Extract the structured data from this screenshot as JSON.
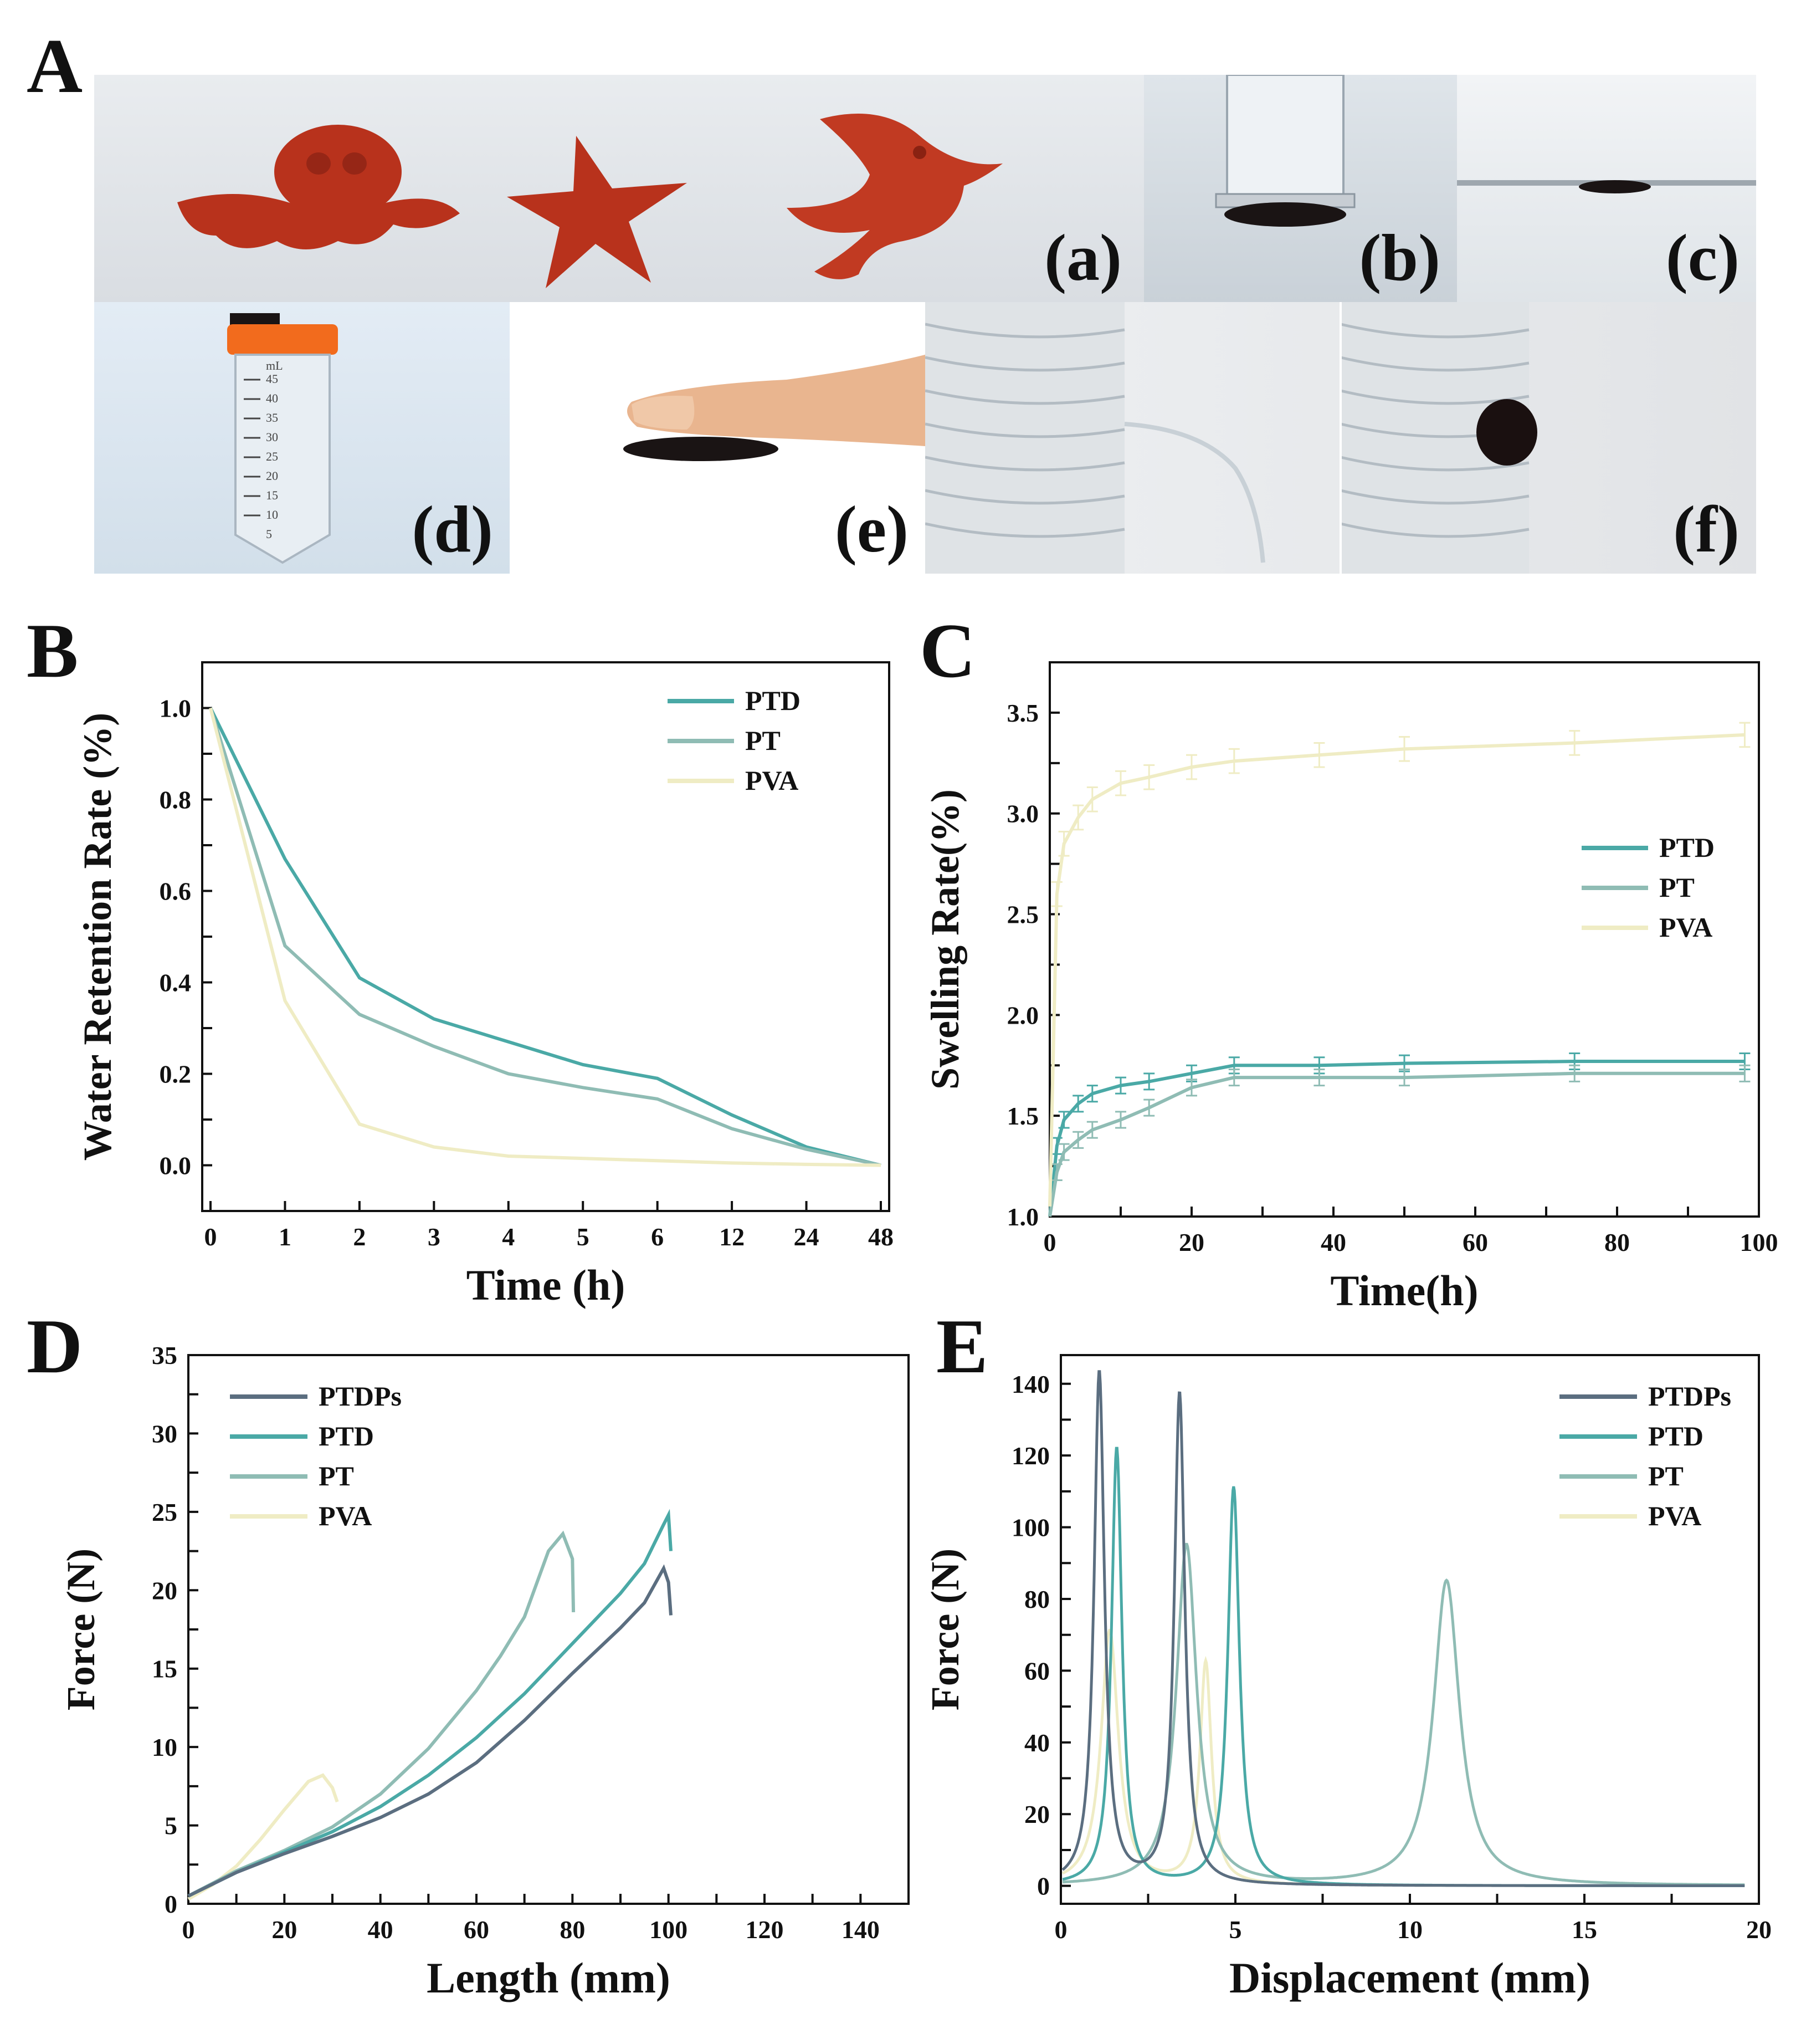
{
  "panel_letters": {
    "A": "A",
    "B": "B",
    "C": "C",
    "D": "D",
    "E": "E"
  },
  "photos": {
    "labels": [
      "(a)",
      "(b)",
      "(c)",
      "(d)",
      "(e)",
      "(f)"
    ],
    "syringe_scale": [
      "mL",
      "45",
      "40",
      "35",
      "30",
      "25",
      "20",
      "15",
      "10",
      "5"
    ]
  },
  "colors": {
    "PTDPs": "#5b6e80",
    "PTD": "#4aa9a6",
    "PT": "#8fbcb4",
    "PVA": "#efecc4",
    "hydrogel_red": "#b8321c",
    "hydrogel_black": "#1a1414"
  },
  "chart_data": [
    {
      "id": "B",
      "type": "line",
      "xlabel": "Time (h)",
      "ylabel": "Water Retention Rate (%)",
      "categories": [
        "0",
        "1",
        "2",
        "3",
        "4",
        "5",
        "6",
        "12",
        "24",
        "48"
      ],
      "ylim": [
        -0.1,
        1.1
      ],
      "yticks": [
        "0.0",
        "0.2",
        "0.4",
        "0.6",
        "0.8",
        "1.0"
      ],
      "legend_position": "top-right",
      "series": [
        {
          "name": "PTD",
          "values": [
            1.0,
            0.67,
            0.41,
            0.32,
            0.27,
            0.22,
            0.19,
            0.11,
            0.04,
            0.0
          ]
        },
        {
          "name": "PT",
          "values": [
            1.0,
            0.48,
            0.33,
            0.26,
            0.2,
            0.17,
            0.145,
            0.08,
            0.035,
            0.0
          ]
        },
        {
          "name": "PVA",
          "values": [
            1.0,
            0.36,
            0.09,
            0.04,
            0.02,
            0.015,
            0.01,
            0.005,
            0.002,
            0.0
          ]
        }
      ]
    },
    {
      "id": "C",
      "type": "line",
      "xlabel": "Time(h)",
      "ylabel": "Swelling Rate(%)",
      "xlim": [
        0,
        100
      ],
      "ylim": [
        1.0,
        3.75
      ],
      "xticks": [
        "0",
        "20",
        "40",
        "60",
        "80",
        "100"
      ],
      "yticks": [
        "1.0",
        "1.5",
        "2.0",
        "2.5",
        "3.0",
        "3.5"
      ],
      "legend_position": "middle-right",
      "error_bars": true,
      "series": [
        {
          "name": "PTD",
          "x": [
            0,
            1,
            2,
            4,
            6,
            10,
            14,
            20,
            26,
            38,
            50,
            74,
            98
          ],
          "values": [
            1.0,
            1.35,
            1.48,
            1.56,
            1.61,
            1.65,
            1.67,
            1.71,
            1.75,
            1.75,
            1.76,
            1.77,
            1.77
          ],
          "err": 0.04
        },
        {
          "name": "PT",
          "x": [
            0,
            1,
            2,
            4,
            6,
            10,
            14,
            20,
            26,
            38,
            50,
            74,
            98
          ],
          "values": [
            1.0,
            1.22,
            1.32,
            1.38,
            1.43,
            1.48,
            1.54,
            1.64,
            1.69,
            1.69,
            1.69,
            1.71,
            1.71
          ],
          "err": 0.04
        },
        {
          "name": "PVA",
          "x": [
            0,
            1,
            2,
            4,
            6,
            10,
            14,
            20,
            26,
            38,
            50,
            74,
            98
          ],
          "values": [
            1.05,
            2.6,
            2.85,
            2.98,
            3.07,
            3.15,
            3.18,
            3.23,
            3.26,
            3.29,
            3.32,
            3.35,
            3.39
          ],
          "err": 0.06
        }
      ]
    },
    {
      "id": "D",
      "type": "line",
      "xlabel": "Length (mm)",
      "ylabel": "Force (N)",
      "xlim": [
        0,
        150
      ],
      "ylim": [
        0,
        35
      ],
      "xticks": [
        "0",
        "20",
        "40",
        "60",
        "80",
        "100",
        "120",
        "140"
      ],
      "yticks": [
        "0",
        "5",
        "10",
        "15",
        "20",
        "25",
        "30",
        "35"
      ],
      "legend_position": "top-left",
      "series": [
        {
          "name": "PTDPs",
          "x": [
            0,
            10,
            20,
            30,
            40,
            50,
            60,
            70,
            80,
            90,
            95,
            99,
            100,
            100.5
          ],
          "values": [
            0.5,
            2.0,
            3.2,
            4.3,
            5.5,
            7.0,
            9.0,
            11.7,
            14.7,
            17.6,
            19.2,
            21.4,
            20.5,
            18.4
          ]
        },
        {
          "name": "PTD",
          "x": [
            0,
            10,
            20,
            30,
            40,
            50,
            60,
            70,
            80,
            90,
            95,
            99,
            100,
            100.5
          ],
          "values": [
            0.5,
            2.0,
            3.3,
            4.6,
            6.2,
            8.2,
            10.6,
            13.4,
            16.6,
            19.8,
            21.7,
            24.2,
            24.8,
            22.5
          ]
        },
        {
          "name": "PT",
          "x": [
            0,
            10,
            20,
            30,
            40,
            50,
            60,
            65,
            70,
            75,
            78,
            80,
            80.2
          ],
          "values": [
            0.5,
            2.1,
            3.4,
            4.9,
            7.0,
            9.9,
            13.6,
            15.8,
            18.3,
            22.5,
            23.6,
            22.0,
            18.6
          ]
        },
        {
          "name": "PVA",
          "x": [
            0,
            5,
            10,
            15,
            20,
            25,
            28,
            30,
            31
          ],
          "values": [
            0.3,
            1.2,
            2.4,
            4.1,
            6.0,
            7.8,
            8.2,
            7.4,
            6.5
          ]
        }
      ]
    },
    {
      "id": "E",
      "type": "line",
      "xlabel": "Displacement (mm)",
      "ylabel": "Force (N)",
      "xlim": [
        0,
        20
      ],
      "ylim": [
        -5,
        148
      ],
      "xticks": [
        "0",
        "5",
        "10",
        "15",
        "20"
      ],
      "yticks": [
        "0",
        "20",
        "40",
        "60",
        "80",
        "100",
        "120",
        "140"
      ],
      "legend_position": "top-right",
      "series": [
        {
          "name": "PTDPs",
          "peaks": [
            {
              "x": 1.1,
              "h": 143,
              "w": 0.18
            },
            {
              "x": 3.4,
              "h": 137,
              "w": 0.18
            }
          ],
          "xmax": 19.6
        },
        {
          "name": "PTD",
          "peaks": [
            {
              "x": 1.6,
              "h": 122,
              "w": 0.18
            },
            {
              "x": 4.95,
              "h": 111,
              "w": 0.2
            }
          ],
          "xmax": 19.6
        },
        {
          "name": "PT",
          "peaks": [
            {
              "x": 3.6,
              "h": 95,
              "w": 0.35
            },
            {
              "x": 11.05,
              "h": 85,
              "w": 0.45
            }
          ],
          "xmax": 19.6
        },
        {
          "name": "PVA",
          "peaks": [
            {
              "x": 1.4,
              "h": 71,
              "w": 0.3
            },
            {
              "x": 4.15,
              "h": 62,
              "w": 0.2
            }
          ],
          "xmax": 14.2
        }
      ]
    }
  ]
}
